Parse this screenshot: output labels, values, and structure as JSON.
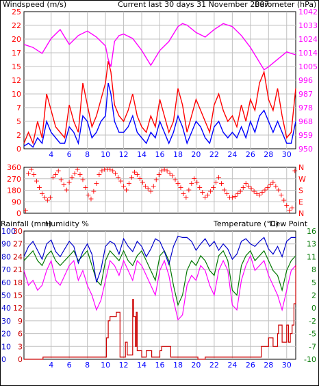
{
  "title": "Current last 30 days 31 November 2007",
  "colors": {
    "windspeed": "#ff0000",
    "winddir": "#ff0000",
    "gust": "#ff0000",
    "wind_avg": "#0000ff",
    "barometer": "#ff00ff",
    "rainfall": "#cc0000",
    "humidity": "#0000cc",
    "temperature": "#007700",
    "dewpoint": "#ff00ff",
    "grid": "#c0c0c0",
    "text": "#000000"
  },
  "chart_data": [
    {
      "type": "line",
      "left_label": "Windspeed (m/s)",
      "right_label": "Barometer (hPa)",
      "y_ticks_left": [
        "0",
        "2",
        "5",
        "7",
        "10",
        "12",
        "15",
        "17",
        "20",
        "22",
        "25"
      ],
      "y_ticks_right": [
        "950",
        "959",
        "968",
        "978",
        "987",
        "996",
        "1005",
        "1014",
        "1024",
        "1033",
        "1042"
      ],
      "ylim_left": [
        0,
        25
      ],
      "ylim_right": [
        950,
        1042
      ],
      "x_ticks": [
        "4",
        "6",
        "8",
        "10",
        "12",
        "14",
        "16",
        "18",
        "20",
        "22",
        "24",
        "26",
        "28",
        "30"
      ],
      "xlim": [
        1,
        31
      ],
      "barometer": {
        "x": [
          1,
          2,
          3,
          4,
          5,
          5.5,
          6,
          7,
          8,
          9,
          10,
          10.3,
          10.6,
          11,
          11.5,
          12,
          13,
          14,
          15,
          16,
          17,
          18,
          18.5,
          19,
          20,
          21,
          22,
          23,
          24,
          25,
          26,
          27,
          27.5,
          28,
          29,
          30,
          30.5,
          31
        ],
        "y": [
          1020,
          1018,
          1014,
          1024,
          1030,
          1025,
          1020,
          1026,
          1029,
          1025,
          1019,
          1010,
          1005,
          1022,
          1026,
          1027,
          1024,
          1016,
          1006,
          1016,
          1022,
          1032,
          1034,
          1033,
          1028,
          1025,
          1030,
          1034,
          1032,
          1026,
          1018,
          1008,
          1003,
          1005,
          1010,
          1015,
          1014,
          1013
        ]
      },
      "gust": {
        "x": [
          1,
          1.5,
          2,
          2.5,
          3,
          3.5,
          4,
          4.5,
          5,
          5.5,
          6,
          6.5,
          7,
          7.5,
          8,
          8.5,
          9,
          9.5,
          10,
          10.3,
          10.6,
          11,
          11.5,
          12,
          12.5,
          13,
          13.5,
          14,
          14.5,
          15,
          15.5,
          16,
          16.5,
          17,
          17.5,
          18,
          18.5,
          19,
          19.5,
          20,
          20.5,
          21,
          21.5,
          22,
          22.5,
          23,
          23.5,
          24,
          24.5,
          25,
          25.5,
          26,
          26.5,
          27,
          27.5,
          28,
          28.5,
          29,
          29.5,
          30,
          30.5,
          31
        ],
        "y": [
          1,
          3,
          1,
          5,
          2,
          10,
          7,
          4,
          3,
          2,
          8,
          5,
          3,
          12,
          8,
          4,
          6,
          9,
          12,
          16,
          14,
          8,
          6,
          5,
          7,
          10,
          6,
          4,
          3,
          6,
          4,
          9,
          6,
          3,
          5,
          11,
          8,
          3,
          6,
          9,
          7,
          5,
          3,
          8,
          10,
          7,
          5,
          6,
          4,
          8,
          5,
          9,
          7,
          12,
          14,
          9,
          7,
          11,
          6,
          2,
          3,
          11
        ]
      },
      "windspeed": {
        "x": [
          1,
          1.5,
          2,
          2.5,
          3,
          3.5,
          4,
          4.5,
          5,
          5.5,
          6,
          6.5,
          7,
          7.5,
          8,
          8.5,
          9,
          9.5,
          10,
          10.3,
          10.6,
          11,
          11.5,
          12,
          12.5,
          13,
          13.5,
          14,
          14.5,
          15,
          15.5,
          16,
          16.5,
          17,
          17.5,
          18,
          18.5,
          19,
          19.5,
          20,
          20.5,
          21,
          21.5,
          22,
          22.5,
          23,
          23.5,
          24,
          24.5,
          25,
          25.5,
          26,
          26.5,
          27,
          27.5,
          28,
          28.5,
          29,
          29.5,
          30,
          30.5,
          31
        ],
        "y": [
          0.5,
          1,
          0.3,
          2,
          1,
          5,
          3,
          2,
          1,
          1,
          4,
          3,
          1,
          6,
          5,
          2,
          3,
          5,
          6,
          12,
          10,
          5,
          3,
          3,
          4,
          6,
          3,
          2,
          1,
          3,
          2,
          5,
          3,
          1,
          3,
          6,
          4,
          1,
          3,
          5,
          4,
          2,
          1,
          4,
          5,
          3,
          2,
          3,
          2,
          4,
          2,
          5,
          3,
          6,
          7,
          5,
          3,
          5,
          3,
          1,
          1,
          5
        ]
      }
    },
    {
      "type": "scatter",
      "left_label": "",
      "y_ticks_left": [
        "0",
        "90",
        "180",
        "270",
        "360"
      ],
      "y_ticks_right": [
        "N",
        "E",
        "S",
        "W",
        "N"
      ],
      "ylim": [
        0,
        360
      ],
      "x_ticks": [
        "4",
        "6",
        "8",
        "10",
        "12",
        "14",
        "16",
        "18",
        "20",
        "22",
        "24",
        "26",
        "28",
        "30"
      ],
      "xlim": [
        1,
        31
      ],
      "winddir": {
        "x": [
          1.2,
          1.5,
          1.8,
          2.1,
          2.4,
          2.7,
          3.0,
          3.3,
          3.6,
          3.9,
          4.2,
          4.5,
          4.8,
          5.1,
          5.4,
          5.7,
          6.0,
          6.3,
          6.6,
          6.9,
          7.2,
          7.5,
          7.8,
          8.1,
          8.4,
          8.7,
          9.0,
          9.3,
          9.6,
          9.9,
          10.2,
          10.5,
          10.8,
          11.1,
          11.4,
          11.7,
          12.0,
          12.3,
          12.6,
          12.9,
          13.2,
          13.5,
          13.8,
          14.1,
          14.4,
          14.7,
          15.0,
          15.3,
          15.6,
          15.9,
          16.2,
          16.5,
          16.8,
          17.1,
          17.4,
          17.7,
          18.0,
          18.3,
          18.6,
          18.9,
          19.2,
          19.5,
          19.8,
          20.1,
          20.4,
          20.7,
          21.0,
          21.3,
          21.6,
          21.9,
          22.2,
          22.5,
          22.8,
          23.1,
          23.4,
          23.7,
          24.0,
          24.3,
          24.6,
          24.9,
          25.2,
          25.5,
          25.8,
          26.1,
          26.4,
          26.7,
          27.0,
          27.3,
          27.6,
          27.9,
          28.2,
          28.5,
          28.8,
          29.1,
          29.4,
          29.7,
          30.0,
          30.3,
          30.6,
          30.9
        ],
        "y": [
          20,
          310,
          340,
          300,
          250,
          200,
          150,
          120,
          100,
          120,
          280,
          300,
          330,
          260,
          220,
          180,
          240,
          280,
          310,
          340,
          300,
          260,
          200,
          140,
          110,
          170,
          230,
          300,
          330,
          340,
          340,
          340,
          330,
          310,
          280,
          250,
          210,
          180,
          230,
          280,
          320,
          300,
          270,
          240,
          210,
          190,
          170,
          210,
          260,
          300,
          330,
          340,
          330,
          310,
          290,
          260,
          230,
          200,
          150,
          120,
          180,
          230,
          270,
          240,
          200,
          160,
          120,
          140,
          170,
          200,
          240,
          280,
          230,
          180,
          150,
          120,
          120,
          130,
          150,
          170,
          200,
          230,
          210,
          190,
          170,
          150,
          140,
          160,
          180,
          200,
          220,
          240,
          210,
          180,
          140,
          100,
          60,
          20,
          40,
          330
        ]
      }
    },
    {
      "type": "line",
      "left_label": "Rainfall (mm)",
      "left_label_2": "Humidity %",
      "right_label": "Temperature (°C)",
      "right_label_2": "Dew Point",
      "y_ticks_rain": [
        "0",
        "3",
        "6",
        "9",
        "12",
        "15",
        "18",
        "21",
        "24",
        "27",
        "30"
      ],
      "y_ticks_humidity": [
        "0",
        "10",
        "20",
        "30",
        "40",
        "50",
        "60",
        "70",
        "80",
        "90",
        "100"
      ],
      "y_ticks_right": [
        "-10",
        "-7",
        "-5",
        "-2",
        "0",
        "2",
        "5",
        "8",
        "11",
        "13",
        "16"
      ],
      "ylim_rain": [
        0,
        30
      ],
      "ylim_humidity": [
        0,
        100
      ],
      "ylim_right": [
        -10,
        16
      ],
      "x_ticks": [
        "4",
        "6",
        "8",
        "10",
        "12",
        "14",
        "16",
        "18",
        "20",
        "22",
        "24",
        "26",
        "28",
        "30"
      ],
      "xlim": [
        1,
        31
      ],
      "humidity": {
        "x": [
          1,
          1.5,
          2,
          2.5,
          3,
          3.5,
          4,
          4.5,
          5,
          5.5,
          6,
          6.5,
          7,
          7.5,
          8,
          8.5,
          9,
          9.5,
          10,
          10.5,
          11,
          11.5,
          12,
          12.5,
          13,
          13.5,
          14,
          14.5,
          15,
          15.5,
          16,
          16.5,
          17,
          17.5,
          18,
          18.5,
          19,
          19.5,
          20,
          20.5,
          21,
          21.5,
          22,
          22.5,
          23,
          23.5,
          24,
          24.5,
          25,
          25.5,
          26,
          26.5,
          27,
          27.5,
          28,
          28.5,
          29,
          29.5,
          30,
          30.5,
          31
        ],
        "y": [
          80,
          88,
          92,
          85,
          78,
          90,
          93,
          84,
          80,
          86,
          92,
          88,
          75,
          84,
          90,
          82,
          60,
          70,
          88,
          92,
          90,
          82,
          94,
          88,
          84,
          92,
          88,
          80,
          86,
          94,
          92,
          84,
          74,
          88,
          96,
          95,
          95,
          92,
          85,
          90,
          94,
          88,
          92,
          85,
          90,
          86,
          78,
          82,
          92,
          94,
          90,
          88,
          92,
          95,
          86,
          82,
          88,
          80,
          92,
          95,
          95
        ]
      },
      "temperature": {
        "x": [
          1,
          1.5,
          2,
          2.5,
          3,
          3.5,
          4,
          4.5,
          5,
          5.5,
          6,
          6.5,
          7,
          7.5,
          8,
          8.5,
          9,
          9.5,
          10,
          10.5,
          11,
          11.5,
          12,
          12.5,
          13,
          13.5,
          14,
          14.5,
          15,
          15.5,
          16,
          16.5,
          17,
          17.5,
          18,
          18.5,
          19,
          19.5,
          20,
          20.5,
          21,
          21.5,
          22,
          22.5,
          23,
          23.5,
          24,
          24.5,
          25,
          25.5,
          26,
          26.5,
          27,
          27.5,
          28,
          28.5,
          29,
          29.5,
          30,
          30.5,
          31
        ],
        "y": [
          10,
          11,
          12,
          10,
          9,
          11,
          12,
          10,
          9,
          10,
          11,
          12,
          10,
          11,
          12,
          9,
          6,
          5,
          10,
          12,
          11,
          10,
          12,
          10,
          9,
          11,
          12,
          10,
          8,
          6,
          11,
          12,
          10,
          5,
          1,
          3,
          8,
          10,
          9,
          11,
          10,
          8,
          7,
          11,
          12,
          10,
          4,
          3,
          9,
          11,
          12,
          10,
          11,
          12,
          10,
          8,
          7,
          4,
          8,
          10,
          11
        ]
      },
      "dewpoint": {
        "x": [
          1,
          1.5,
          2,
          2.5,
          3,
          3.5,
          4,
          4.5,
          5,
          5.5,
          6,
          6.5,
          7,
          7.5,
          8,
          8.5,
          9,
          9.5,
          10,
          10.5,
          11,
          11.5,
          12,
          12.5,
          13,
          13.5,
          14,
          14.5,
          15,
          15.5,
          16,
          16.5,
          17,
          17.5,
          18,
          18.5,
          19,
          19.5,
          20,
          20.5,
          21,
          21.5,
          22,
          22.5,
          23,
          23.5,
          24,
          24.5,
          25,
          25.5,
          26,
          26.5,
          27,
          27.5,
          28,
          28.5,
          29,
          29.5,
          30,
          30.5,
          31
        ],
        "y": [
          8,
          5,
          6,
          4,
          5,
          8,
          10,
          6,
          5,
          7,
          9,
          10,
          6,
          8,
          5,
          3,
          0,
          2,
          6,
          10,
          9,
          7,
          10,
          8,
          6,
          10,
          9,
          7,
          5,
          3,
          8,
          10,
          7,
          2,
          -2,
          -1,
          5,
          7,
          6,
          9,
          8,
          5,
          3,
          8,
          10,
          8,
          1,
          0,
          6,
          9,
          11,
          8,
          9,
          10,
          7,
          5,
          3,
          0,
          4,
          8,
          9
        ]
      },
      "rainfall": {
        "x": [
          1,
          2,
          3,
          3.1,
          4,
          6,
          7,
          8,
          9,
          10,
          10.1,
          10.3,
          10.5,
          11,
          11.2,
          11.4,
          11.6,
          12,
          12.2,
          12.4,
          12.8,
          13,
          13.1,
          13.3,
          13.4,
          13.5,
          13.8,
          14,
          14.5,
          15,
          15.1,
          15.5,
          16,
          16.2,
          16.4,
          17,
          17.2,
          17.4,
          18,
          18.5,
          19,
          20,
          20.2,
          21,
          22,
          24,
          26,
          26.5,
          27,
          27.2,
          27.5,
          28,
          28.5,
          29,
          29.1,
          29.5,
          30,
          30.2,
          30.4,
          30.6,
          30.8,
          31
        ],
        "y": [
          0,
          0,
          0,
          0.5,
          0.5,
          0.5,
          0.5,
          0.5,
          0.5,
          0.5,
          5,
          9,
          10,
          10,
          11,
          11,
          0.5,
          0.5,
          4,
          1,
          1,
          14,
          10,
          3,
          11,
          2,
          2,
          0.5,
          2,
          2,
          0.5,
          0.5,
          2,
          3,
          3,
          3,
          0.5,
          0.5,
          0.5,
          0.5,
          0.5,
          0.5,
          0,
          0.5,
          0.5,
          0.5,
          0.5,
          0.5,
          0.5,
          3,
          3,
          5,
          3,
          6,
          8,
          4,
          8,
          4,
          6,
          8,
          13,
          22
        ]
      }
    }
  ]
}
